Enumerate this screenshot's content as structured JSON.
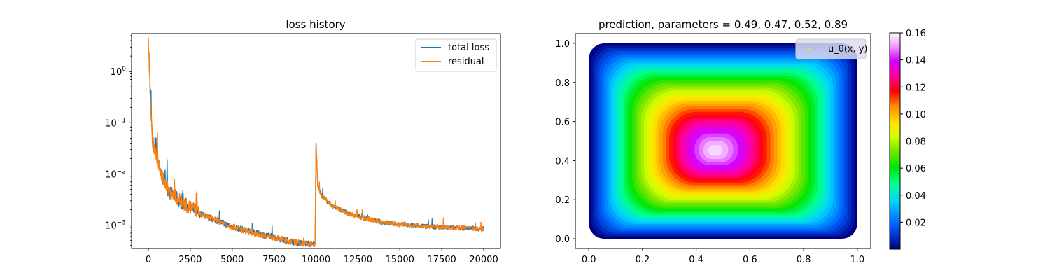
{
  "figure": {
    "left_title": "loss history",
    "right_title": "prediction, parameters = 0.49, 0.47, 0.52, 0.89"
  },
  "colors": {
    "total_loss": "#1f77b4",
    "residual": "#ff7f0e",
    "legend_marker": "#adff2f"
  },
  "chart_data": [
    {
      "type": "line",
      "title": "loss history",
      "xlabel": "",
      "ylabel": "",
      "y_scale": "log",
      "xlim": [
        -1000,
        21000
      ],
      "ylim": [
        0.00035,
        5.5
      ],
      "x_ticks": [
        0,
        2500,
        5000,
        7500,
        10000,
        12500,
        15000,
        17500,
        20000
      ],
      "x_tick_labels": [
        "0",
        "2500",
        "5000",
        "7500",
        "10000",
        "12500",
        "15000",
        "17500",
        "20000"
      ],
      "y_ticks": [
        0.001,
        0.01,
        0.1,
        1
      ],
      "y_tick_labels": [
        "10^-3",
        "10^-2",
        "10^-1",
        "10^0"
      ],
      "legend_position": "top-right",
      "grid": false,
      "series": [
        {
          "name": "total loss",
          "x": [
            0,
            50,
            150,
            250,
            400,
            600,
            800,
            1000,
            1250,
            1500,
            1750,
            2000,
            2500,
            3000,
            3500,
            4000,
            5000,
            6000,
            7000,
            8000,
            9000,
            9900,
            9950,
            10000,
            10100,
            10300,
            10600,
            11000,
            12000,
            13000,
            14000,
            15000,
            16000,
            17000,
            18000,
            19000,
            20000
          ],
          "y": [
            3.5,
            1.5,
            0.15,
            0.04,
            0.025,
            0.015,
            0.008,
            0.006,
            0.004,
            0.0035,
            0.003,
            0.0025,
            0.002,
            0.0016,
            0.0014,
            0.0012,
            0.0009,
            0.00072,
            0.0006,
            0.0005,
            0.00043,
            0.0004,
            0.00038,
            0.04,
            0.006,
            0.0038,
            0.003,
            0.0023,
            0.0016,
            0.0013,
            0.0011,
            0.001,
            0.00095,
            0.0009,
            0.00087,
            0.00085,
            0.00082
          ]
        },
        {
          "name": "residual",
          "x": [
            0,
            50,
            150,
            250,
            400,
            600,
            800,
            1000,
            1250,
            1500,
            1750,
            2000,
            2500,
            3000,
            3500,
            4000,
            5000,
            6000,
            7000,
            8000,
            9000,
            9900,
            9950,
            10000,
            10100,
            10300,
            10600,
            11000,
            12000,
            13000,
            14000,
            15000,
            16000,
            17000,
            18000,
            19000,
            20000
          ],
          "y": [
            3.5,
            1.5,
            0.15,
            0.04,
            0.025,
            0.015,
            0.008,
            0.006,
            0.004,
            0.0035,
            0.003,
            0.0025,
            0.002,
            0.0016,
            0.0014,
            0.0012,
            0.0009,
            0.00072,
            0.0006,
            0.0005,
            0.00043,
            0.0004,
            0.00038,
            0.04,
            0.006,
            0.0038,
            0.003,
            0.0023,
            0.0016,
            0.0013,
            0.0011,
            0.001,
            0.00095,
            0.0009,
            0.00087,
            0.00085,
            0.00082
          ]
        }
      ]
    },
    {
      "type": "heatmap",
      "title": "prediction, parameters = 0.49, 0.47, 0.52, 0.89",
      "xlabel": "",
      "ylabel": "",
      "xlim": [
        -0.05,
        1.05
      ],
      "ylim": [
        -0.05,
        1.05
      ],
      "x_ticks": [
        0.0,
        0.2,
        0.4,
        0.6,
        0.8,
        1.0
      ],
      "x_tick_labels": [
        "0.0",
        "0.2",
        "0.4",
        "0.6",
        "0.8",
        "1.0"
      ],
      "y_ticks": [
        0.0,
        0.2,
        0.4,
        0.6,
        0.8,
        1.0
      ],
      "y_tick_labels": [
        "0.0",
        "0.2",
        "0.4",
        "0.6",
        "0.8",
        "1.0"
      ],
      "legend_label": "u_θ(x, y)",
      "legend_position": "top-right",
      "peak": {
        "x": 0.47,
        "y": 0.45,
        "value": 0.16
      },
      "colorbar": {
        "colormap": "gist_ncar",
        "range": [
          0.0,
          0.16
        ],
        "ticks": [
          0.02,
          0.04,
          0.06,
          0.08,
          0.1,
          0.12,
          0.14,
          0.16
        ],
        "tick_labels": [
          "0.02",
          "0.04",
          "0.06",
          "0.08",
          "0.10",
          "0.12",
          "0.14",
          "0.16"
        ]
      }
    }
  ]
}
